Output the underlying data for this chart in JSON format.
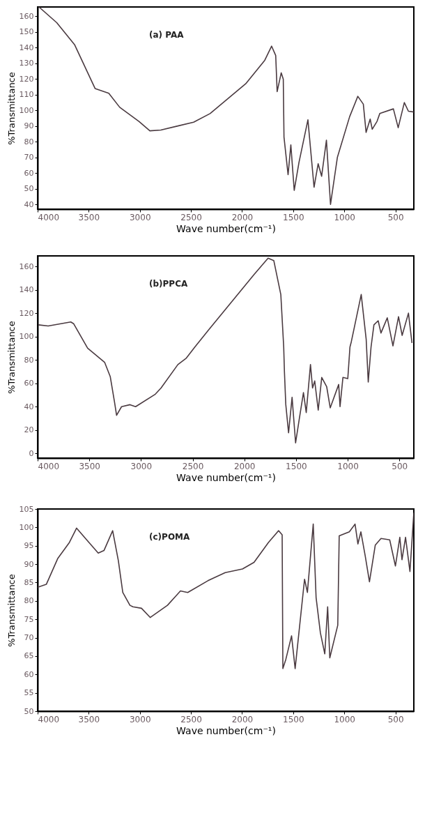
{
  "chart_data": [
    {
      "type": "line",
      "xlabel": "Wave number(cm⁻¹)",
      "ylabel": "%Transmittance",
      "annotations": [
        "(a) PAA"
      ],
      "xlim": [
        4000,
        320
      ],
      "xticks": [
        4000,
        3500,
        3000,
        2500,
        2000,
        1500,
        1000,
        500
      ],
      "ylim": [
        37,
        166
      ],
      "yticks": [
        40,
        50,
        60,
        70,
        80,
        90,
        100,
        110,
        120,
        130,
        140,
        150,
        160
      ],
      "series": [
        {
          "color": "#4a3a40",
          "x": [
            3987,
            3813,
            3639,
            3438,
            3304,
            3197,
            3009,
            2902,
            2795,
            2635,
            2474,
            2313,
            1965,
            1778,
            1711,
            1671,
            1657,
            1617,
            1597,
            1590,
            1550,
            1523,
            1490,
            1443,
            1356,
            1296,
            1256,
            1222,
            1175,
            1135,
            1068,
            948,
            868,
            814,
            787,
            747,
            727,
            680,
            653,
            520,
            473,
            413,
            373,
            320
          ],
          "values": [
            166,
            156,
            142,
            114,
            111,
            102,
            93,
            87,
            87.5,
            90,
            92.5,
            98,
            117,
            132,
            141,
            135,
            112,
            124,
            120,
            83,
            59,
            78,
            49,
            67,
            94,
            51,
            66,
            58,
            81,
            40,
            70,
            96,
            109,
            104,
            86,
            94.5,
            88,
            93,
            98,
            101,
            89,
            105,
            99.5,
            99
          ]
        }
      ]
    },
    {
      "type": "line",
      "xlabel": "Wave number(cm⁻¹)",
      "ylabel": "%Transmittance",
      "annotations": [
        "(b)PPCA"
      ],
      "xlim": [
        4000,
        360
      ],
      "xticks": [
        4000,
        3500,
        3000,
        2500,
        2000,
        1500,
        1000,
        500
      ],
      "ylim": [
        -4,
        169
      ],
      "yticks": [
        0,
        20,
        40,
        60,
        80,
        100,
        120,
        140,
        160
      ],
      "series": [
        {
          "color": "#4a3a40",
          "x": [
            3993,
            3898,
            3679,
            3652,
            3516,
            3352,
            3297,
            3256,
            3236,
            3188,
            3106,
            3052,
            2861,
            2806,
            2643,
            2561,
            2479,
            2342,
            1906,
            1770,
            1715,
            1647,
            1619,
            1612,
            1599,
            1572,
            1538,
            1504,
            1469,
            1428,
            1401,
            1360,
            1340,
            1319,
            1285,
            1251,
            1203,
            1169,
            1087,
            1074,
            1046,
            999,
            978,
            965,
            869,
            821,
            801,
            774,
            746,
            705,
            678,
            617,
            562,
            508,
            473,
            412,
            378
          ],
          "values": [
            110,
            109,
            112.5,
            111,
            90,
            78,
            65.6,
            44,
            32.6,
            40,
            41.7,
            40,
            50.7,
            56,
            76,
            81.6,
            91,
            106,
            153,
            167,
            165,
            136,
            91,
            70,
            42,
            17.6,
            48,
            9,
            29,
            52,
            35,
            76,
            56,
            62,
            37,
            65,
            57,
            39,
            59,
            40,
            65,
            64,
            91,
            95.5,
            136,
            97.6,
            61,
            91,
            110,
            113.5,
            103,
            116,
            92,
            117,
            101,
            120,
            94.5
          ]
        }
      ]
    },
    {
      "type": "line",
      "xlabel": "Wave number(cm⁻¹)",
      "ylabel": "%Transmittance",
      "annotations": [
        "(c)POMA"
      ],
      "xlim": [
        4000,
        320
      ],
      "xticks": [
        4000,
        3500,
        3000,
        2500,
        2000,
        1500,
        1000,
        500
      ],
      "ylim": [
        50,
        105
      ],
      "yticks": [
        50,
        55,
        60,
        65,
        70,
        75,
        80,
        85,
        90,
        95,
        100,
        105
      ],
      "series": [
        {
          "color": "#4a3a40",
          "x": [
            4000,
            3915,
            3802,
            3689,
            3619,
            3520,
            3407,
            3351,
            3266,
            3210,
            3167,
            3097,
            3068,
            2984,
            2899,
            2730,
            2603,
            2532,
            2334,
            2165,
            1996,
            1883,
            1742,
            1643,
            1608,
            1601,
            1572,
            1516,
            1481,
            1389,
            1361,
            1304,
            1276,
            1234,
            1191,
            1163,
            1142,
            1064,
            1050,
            951,
            895,
            867,
            838,
            796,
            754,
            697,
            641,
            556,
            500,
            457,
            436,
            401,
            358,
            320
          ],
          "values": [
            83.7,
            84.5,
            91.6,
            95.9,
            99.8,
            96.6,
            93,
            93.7,
            99.1,
            90.9,
            82.3,
            78.8,
            78.4,
            78,
            75.5,
            78.8,
            82.7,
            82.3,
            85.5,
            87.7,
            88.7,
            90.5,
            95.9,
            99.1,
            98,
            61.6,
            64.1,
            70.5,
            61.6,
            85.9,
            82.3,
            100.9,
            80.9,
            71.3,
            65.6,
            78.4,
            64.5,
            73.4,
            97.7,
            98.8,
            100.9,
            95.5,
            98.8,
            92.3,
            85.2,
            95.2,
            97,
            96.6,
            89.5,
            97.3,
            91.2,
            97.3,
            88,
            104
          ]
        }
      ]
    }
  ]
}
